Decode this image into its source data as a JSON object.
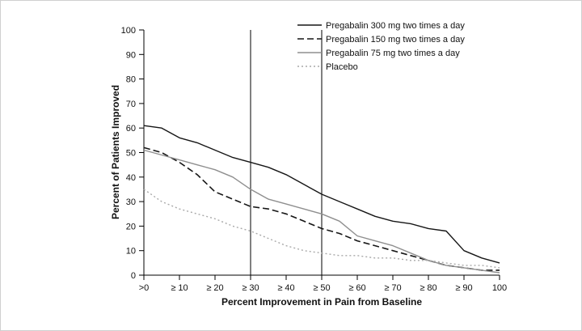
{
  "figure": {
    "border_color": "#cfcfcf",
    "background": "#ffffff"
  },
  "chart_data": {
    "type": "line",
    "title": "",
    "xlabel": "Percent Improvement in Pain from Baseline",
    "ylabel": "Percent of Patients Improved",
    "xlim": [
      0,
      100
    ],
    "ylim": [
      0,
      100
    ],
    "grid": false,
    "legend_position": "top-right",
    "x_ticks": [
      0,
      10,
      20,
      30,
      40,
      50,
      60,
      70,
      80,
      90,
      100
    ],
    "x_tick_labels": [
      ">0",
      "≥ 10",
      "≥ 20",
      "≥ 30",
      "≥ 40",
      "≥ 50",
      "≥ 60",
      "≥ 70",
      "≥ 80",
      "≥ 90",
      "100"
    ],
    "y_ticks": [
      0,
      10,
      20,
      30,
      40,
      50,
      60,
      70,
      80,
      90,
      100
    ],
    "reference_lines_x": [
      30,
      50
    ],
    "x": [
      0,
      5,
      10,
      15,
      20,
      25,
      30,
      35,
      40,
      45,
      50,
      55,
      60,
      65,
      70,
      75,
      80,
      85,
      90,
      95,
      100
    ],
    "series": [
      {
        "id": "pregabalin-300",
        "name": "Pregabalin 300 mg two times a day",
        "color": "#161616",
        "dash": "solid",
        "values": [
          61,
          60,
          56,
          54,
          51,
          48,
          46,
          44,
          41,
          37,
          33,
          30,
          27,
          24,
          22,
          21,
          19,
          18,
          10,
          7,
          5
        ]
      },
      {
        "id": "pregabalin-150",
        "name": "Pregabalin 150 mg two times a day",
        "color": "#161616",
        "dash": "dashed",
        "values": [
          52,
          50,
          46,
          41,
          34,
          31,
          28,
          27,
          25,
          22,
          19,
          17,
          14,
          12,
          10,
          8,
          6,
          4,
          3,
          2,
          2
        ]
      },
      {
        "id": "pregabalin-75",
        "name": "Pregabalin 75 mg two times a day",
        "color": "#8f8f8f",
        "dash": "solid",
        "values": [
          51,
          49,
          47,
          45,
          43,
          40,
          35,
          31,
          29,
          27,
          25,
          22,
          16,
          14,
          12,
          9,
          6,
          4,
          3,
          2,
          1
        ]
      },
      {
        "id": "placebo",
        "name": "Placebo",
        "color": "#a9a9a9",
        "dash": "dotted",
        "values": [
          35,
          30,
          27,
          25,
          23,
          20,
          18,
          15,
          12,
          10,
          9,
          8,
          8,
          7,
          7,
          6,
          6,
          5,
          4,
          4,
          3
        ]
      }
    ]
  }
}
